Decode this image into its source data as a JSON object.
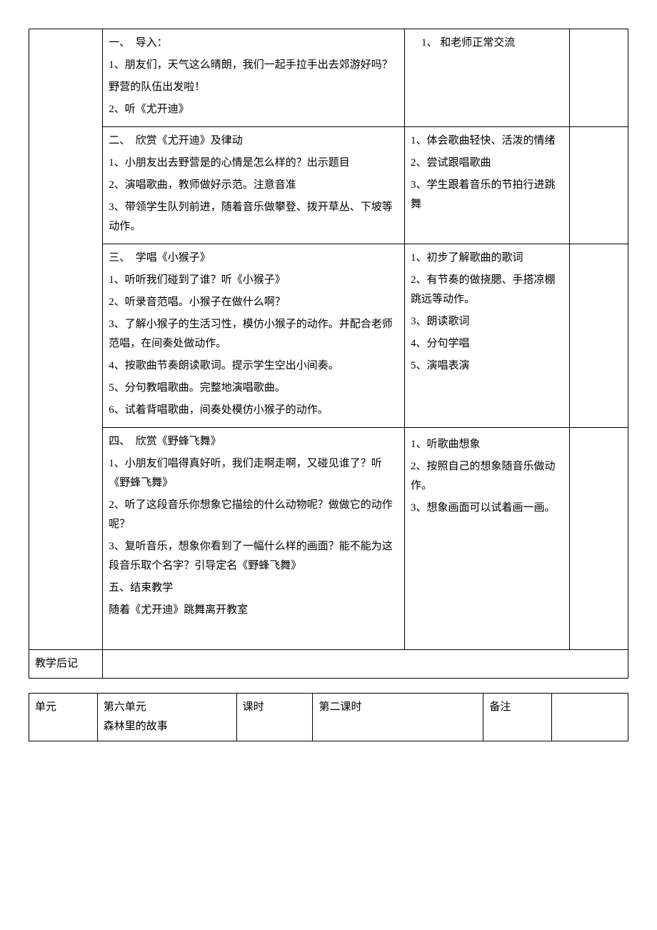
{
  "table1": {
    "rows": [
      {
        "label": "",
        "main": [
          "一、　导入：",
          "1、朋友们，天气这么晴朗，我们一起手拉手出去郊游好吗？",
          "野营的队伍出发啦！",
          "2、听《尤开迪》"
        ],
        "resp": [
          "1、 和老师正常交流"
        ],
        "note": ""
      },
      {
        "label": "",
        "main": [
          "二、　欣赏《尤开迪》及律动",
          "1、小朋友出去野营是的心情是怎么样的？出示题目",
          "2、演唱歌曲，教师做好示范。注意音准",
          "3、带领学生队列前进，随着音乐做攀登、拨开草丛、下坡等动作。"
        ],
        "resp": [
          "1、体会歌曲轻快、活泼的情绪",
          "2、尝试跟唱歌曲",
          "",
          "3、学生跟着音乐的节拍行进跳舞"
        ],
        "note": ""
      },
      {
        "label": "",
        "main": [
          "三、　学唱《小猴子》",
          "1、听听我们碰到了谁？听《小猴子》",
          "2、听录音范唱。小猴子在做什么啊？",
          "3、了解小猴子的生活习性，模仿小猴子的动作。并配合老师范唱，在间奏处做动作。",
          "4、按歌曲节奏朗读歌词。提示学生空出小间奏。",
          "5、分句教唱歌曲。完整地演唱歌曲。",
          "6、试着背唱歌曲，间奏处模仿小猴子的动作。"
        ],
        "resp": [
          "1、初步了解歌曲的歌词",
          "",
          "",
          "2、有节奏的做挠腮、手搭凉棚跳远等动作。",
          "3、朗读歌词",
          "",
          "4、分句学唱",
          "",
          "5、演唱表演"
        ],
        "note": ""
      },
      {
        "label": "",
        "main": [
          "四、　欣赏《野蜂飞舞》",
          "1、小朋友们唱得真好听，我们走啊走啊，又碰见谁了？听《野蜂飞舞》",
          "2、听了这段音乐你想象它描绘的什么动物呢？做做它的动作呢？",
          "3、复听音乐，想象你看到了一幅什么样的画面？能不能为这段音乐取个名字？引导定名《野蜂飞舞》",
          "五、结束教学",
          "随着《尤开迪》跳舞离开教室"
        ],
        "resp": [
          "",
          "1、听歌曲想象",
          "",
          "2、按照自己的想象随音乐做动作。",
          "",
          "3、想象画面可以试着画一画。"
        ],
        "note": ""
      }
    ],
    "footer": {
      "label": "教学后记",
      "content": ""
    }
  },
  "table2": {
    "cells": {
      "c1": "单元",
      "c2a": "第六单元",
      "c2b": "森林里的故事",
      "c3": "课时",
      "c4": "第二课时",
      "c5": "备注",
      "c6": ""
    }
  },
  "style": {
    "font_family": "SimSun",
    "base_font_size_pt": 11,
    "line_height": 1.8,
    "border_color": "#000000",
    "background_color": "#ffffff",
    "text_color": "#000000"
  }
}
